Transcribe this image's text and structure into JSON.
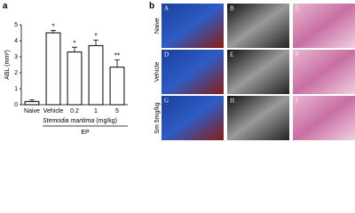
{
  "chart_data": {
    "type": "bar",
    "panel_label": "a",
    "ylabel": "ABL (mm²)",
    "categories": [
      "Naive",
      "Vehicle",
      "0.2",
      "1",
      "5"
    ],
    "values": [
      0.2,
      4.5,
      3.3,
      3.7,
      2.35
    ],
    "errors": [
      0.1,
      0.15,
      0.3,
      0.35,
      0.45
    ],
    "annotations": [
      null,
      "*",
      "*",
      "*",
      "**"
    ],
    "color": "#ffffff",
    "ylim": [
      0,
      5
    ],
    "yticks": [
      0,
      1,
      2,
      3,
      4,
      5
    ],
    "xlabel_species": "Stemodia maritima",
    "xlabel_unit": "(mg/kg)",
    "group_label": "EP"
  },
  "image_panel": {
    "panel_label": "b",
    "row_labels": [
      "Naive",
      "Vehicle",
      "Sm 5mg/kg"
    ],
    "letters": [
      [
        "A",
        "B",
        "C"
      ],
      [
        "D",
        "E",
        "F"
      ],
      [
        "G",
        "H",
        "I"
      ]
    ]
  }
}
